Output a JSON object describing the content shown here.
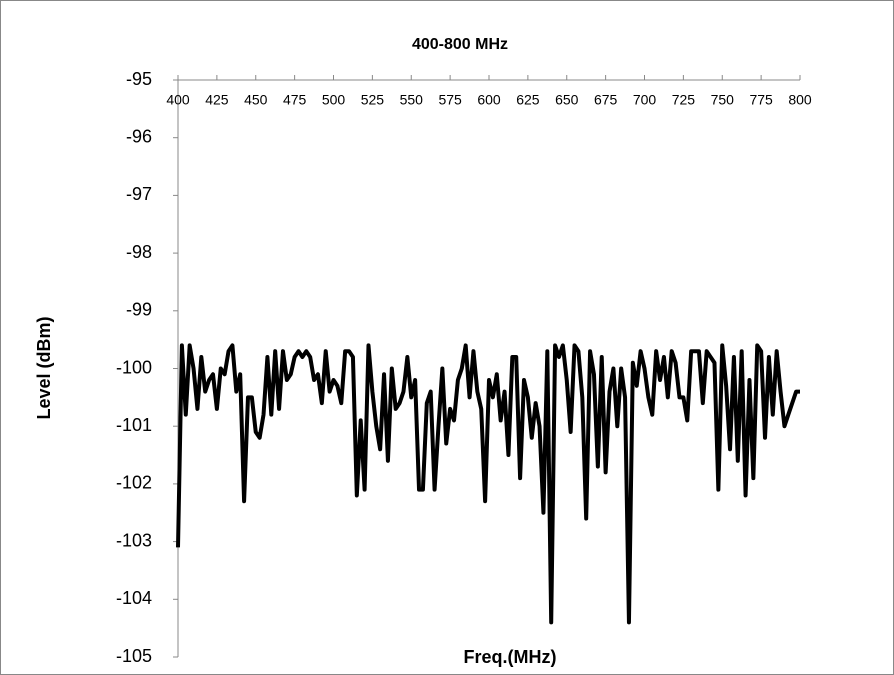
{
  "chart_data": {
    "type": "line",
    "title": "400-800 MHz",
    "x_label": "Freq.(MHz)",
    "y_label": "Level (dBm)",
    "x": [
      400,
      402.5,
      405,
      407.5,
      410,
      412.5,
      415,
      417.5,
      420,
      422.5,
      425,
      427.5,
      430,
      432.5,
      435,
      437.5,
      440,
      442.5,
      445,
      447.5,
      450,
      452.5,
      455,
      457.5,
      460,
      462.5,
      465,
      467.5,
      470,
      472.5,
      475,
      477.5,
      480,
      482.5,
      485,
      487.5,
      490,
      492.5,
      495,
      497.5,
      500,
      502.5,
      505,
      507.5,
      510,
      512.5,
      515,
      517.5,
      520,
      522.5,
      525,
      527.5,
      530,
      532.5,
      535,
      537.5,
      540,
      542.5,
      545,
      547.5,
      550,
      552.5,
      555,
      557.5,
      560,
      562.5,
      565,
      567.5,
      570,
      572.5,
      575,
      577.5,
      580,
      582.5,
      585,
      587.5,
      590,
      592.5,
      595,
      597.5,
      600,
      602.5,
      605,
      607.5,
      610,
      612.5,
      615,
      617.5,
      620,
      622.5,
      625,
      627.5,
      630,
      632.5,
      635,
      637.5,
      640,
      642.5,
      645,
      647.5,
      650,
      652.5,
      655,
      657.5,
      660,
      662.5,
      665,
      667.5,
      670,
      672.5,
      675,
      677.5,
      680,
      682.5,
      685,
      687.5,
      690,
      692.5,
      695,
      697.5,
      700,
      702.5,
      705,
      707.5,
      710,
      712.5,
      715,
      717.5,
      720,
      722.5,
      725,
      727.5,
      730,
      732.5,
      735,
      737.5,
      740,
      742.5,
      745,
      747.5,
      750,
      752.5,
      755,
      757.5,
      760,
      762.5,
      765,
      767.5,
      770,
      772.5,
      775,
      777.5,
      780,
      782.5,
      785,
      787.5,
      790,
      792.5,
      795,
      797.5,
      800
    ],
    "series": [
      {
        "name": "Level",
        "color": "#000000",
        "values": [
          -103.1,
          -99.6,
          -100.8,
          -99.6,
          -100.0,
          -100.7,
          -99.8,
          -100.4,
          -100.2,
          -100.1,
          -100.7,
          -100.0,
          -100.1,
          -99.7,
          -99.6,
          -100.4,
          -100.1,
          -102.3,
          -100.5,
          -100.5,
          -101.1,
          -101.2,
          -100.8,
          -99.8,
          -100.8,
          -99.7,
          -100.7,
          -99.7,
          -100.2,
          -100.1,
          -99.8,
          -99.7,
          -99.8,
          -99.7,
          -99.8,
          -100.2,
          -100.1,
          -100.6,
          -99.7,
          -100.4,
          -100.2,
          -100.3,
          -100.6,
          -99.7,
          -99.7,
          -99.8,
          -102.2,
          -100.9,
          -102.1,
          -99.6,
          -100.4,
          -101.0,
          -101.4,
          -100.1,
          -101.6,
          -100.0,
          -100.7,
          -100.6,
          -100.4,
          -99.8,
          -100.5,
          -100.2,
          -102.1,
          -102.1,
          -100.6,
          -100.4,
          -102.1,
          -101.0,
          -100.0,
          -101.3,
          -100.7,
          -100.9,
          -100.2,
          -100.0,
          -99.6,
          -100.5,
          -99.7,
          -100.4,
          -100.7,
          -102.3,
          -100.2,
          -100.5,
          -100.1,
          -100.9,
          -100.4,
          -101.5,
          -99.8,
          -99.8,
          -101.9,
          -100.2,
          -100.5,
          -101.2,
          -100.6,
          -101.0,
          -102.5,
          -99.7,
          -104.4,
          -99.6,
          -99.8,
          -99.6,
          -100.2,
          -101.1,
          -99.6,
          -99.7,
          -100.5,
          -102.6,
          -99.7,
          -100.1,
          -101.7,
          -99.8,
          -101.8,
          -100.4,
          -100.0,
          -101.0,
          -100.0,
          -100.5,
          -104.4,
          -99.9,
          -100.3,
          -99.7,
          -100.0,
          -100.5,
          -100.8,
          -99.7,
          -100.2,
          -99.8,
          -100.5,
          -99.7,
          -99.9,
          -100.5,
          -100.5,
          -100.9,
          -99.7,
          -99.7,
          -99.7,
          -100.6,
          -99.7,
          -99.8,
          -99.9,
          -102.1,
          -99.6,
          -100.3,
          -101.4,
          -99.8,
          -101.6,
          -99.7,
          -102.2,
          -100.2,
          -101.9,
          -99.6,
          -99.7,
          -101.2,
          -99.8,
          -100.8,
          -99.7,
          -100.4,
          -101.0,
          -100.8,
          -100.6,
          -100.4,
          -100.4
        ]
      }
    ],
    "xlim": [
      400,
      800
    ],
    "xticks": [
      400,
      425,
      450,
      475,
      500,
      525,
      550,
      575,
      600,
      625,
      650,
      675,
      700,
      725,
      750,
      775,
      800
    ],
    "ylim": [
      -105,
      -95
    ],
    "yticks": [
      -105,
      -104,
      -103,
      -102,
      -101,
      -100,
      -99,
      -98,
      -97,
      -96,
      -95
    ]
  }
}
